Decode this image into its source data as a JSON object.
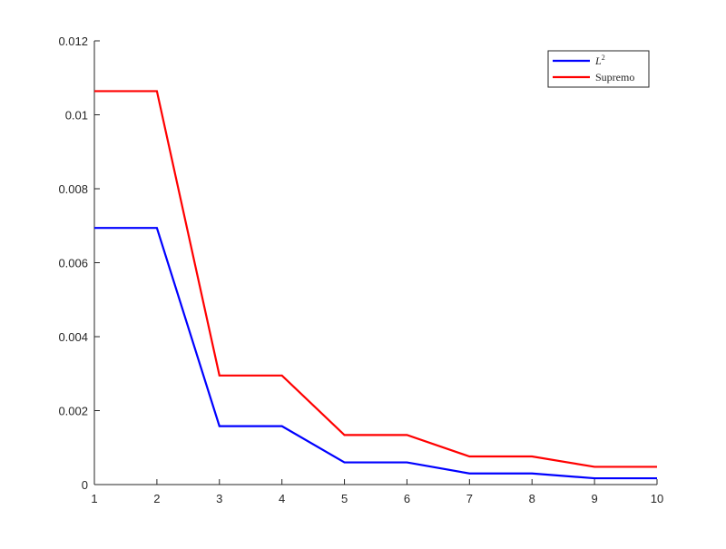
{
  "chart_data": {
    "type": "line",
    "title": "",
    "xlabel": "",
    "ylabel": "",
    "xlim": [
      1,
      10
    ],
    "ylim": [
      0,
      0.012
    ],
    "x_ticks": [
      "1",
      "2",
      "3",
      "4",
      "5",
      "6",
      "7",
      "8",
      "9",
      "10"
    ],
    "y_ticks": [
      "0",
      "0.002",
      "0.004",
      "0.006",
      "0.008",
      "0.01",
      "0.012"
    ],
    "grid": false,
    "legend_position": "top-right",
    "legend": [
      {
        "base": "L",
        "sup": "2",
        "color": "#0000ff"
      },
      {
        "label": "Supremo",
        "color": "#ff0000"
      }
    ],
    "series": [
      {
        "name": "L2",
        "color": "#0000ff",
        "x": [
          1,
          2,
          3,
          4,
          5,
          6,
          7,
          8,
          9,
          10
        ],
        "values": [
          0.00694,
          0.00694,
          0.00158,
          0.00158,
          0.0006,
          0.0006,
          0.0003,
          0.0003,
          0.00017,
          0.00017
        ]
      },
      {
        "name": "Supremo",
        "color": "#ff0000",
        "x": [
          1,
          2,
          3,
          4,
          5,
          6,
          7,
          8,
          9,
          10
        ],
        "values": [
          0.01064,
          0.01064,
          0.00295,
          0.00295,
          0.00134,
          0.00134,
          0.00076,
          0.00076,
          0.00048,
          0.00048
        ]
      }
    ]
  }
}
